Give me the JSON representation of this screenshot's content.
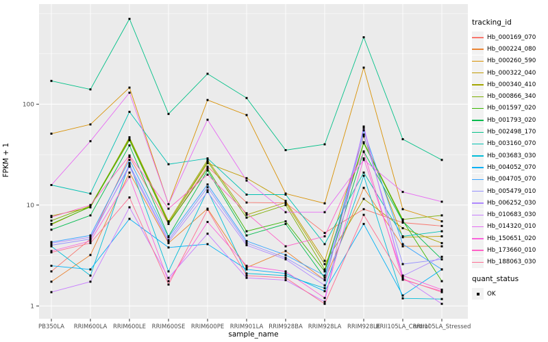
{
  "figure": {
    "background": "#FFFFFF",
    "panel_background": "#EBEBEB",
    "gridline_color": "#FFFFFF",
    "tick_mark_color": "#333333",
    "axis_text_color": "#4D4D4D",
    "point_color": "#000000"
  },
  "axes": {
    "x_label": "sample_name",
    "y_label": "FPKM + 1",
    "y_scale": "log10",
    "y_ticks": [
      1,
      10,
      100
    ],
    "y_minor_values": [
      3.16,
      31.6,
      316,
      790
    ]
  },
  "legend": {
    "color_title": "tracking_id",
    "shape_title": "quant_status",
    "shape_items": [
      {
        "label": "OK",
        "marker": "black-square"
      }
    ]
  },
  "chart_data": {
    "type": "line",
    "title": "",
    "xlabel": "sample_name",
    "ylabel": "FPKM + 1",
    "y_axis": {
      "scale": "log10",
      "ticks": [
        1,
        10,
        100
      ],
      "range_approx": [
        0.75,
        900
      ]
    },
    "grid": true,
    "legend_position": "right",
    "point_marker": {
      "shape": "square",
      "color": "#000000",
      "meaning": "quant_status = OK"
    },
    "x_categories": [
      "PB350LA",
      "RRIM600LA",
      "RRIM600LE",
      "RRIM600SE",
      "RRIM600PE",
      "RRIM901LA",
      "RRIM928BA",
      "RRIM928LA",
      "RRIM928LE",
      "RRII105LA_Control",
      "RRII105LA_Stressed"
    ],
    "series": [
      {
        "name": "Hb_000169_070",
        "color": "#F8766D",
        "values": [
          2.2,
          4.6,
          30,
          6.5,
          24,
          10.6,
          10.5,
          5.3,
          9.1,
          6.7,
          6.2
        ]
      },
      {
        "name": "Hb_000224_080",
        "color": "#EA8331",
        "values": [
          1.74,
          3.2,
          21,
          4.2,
          9.2,
          2.4,
          3.5,
          1.8,
          14.8,
          3.9,
          3.9
        ]
      },
      {
        "name": "Hb_000260_590",
        "color": "#D89000",
        "values": [
          51,
          63,
          146,
          10.2,
          110,
          78,
          13,
          10.4,
          230,
          9.1,
          6.9
        ]
      },
      {
        "name": "Hb_000322_040",
        "color": "#C09B00",
        "values": [
          6.4,
          9.7,
          45,
          6.7,
          26,
          18.5,
          11,
          2.8,
          48,
          4.8,
          4.9
        ]
      },
      {
        "name": "Hb_000340_410",
        "color": "#A3A500",
        "values": [
          7.8,
          9.5,
          47,
          6.9,
          28,
          8.0,
          10.6,
          2.6,
          11.5,
          5.9,
          4.2
        ]
      },
      {
        "name": "Hb_000866_340",
        "color": "#7CAE00",
        "values": [
          7.0,
          9.8,
          46,
          6.6,
          27,
          7.5,
          10,
          2.3,
          42,
          7.2,
          7.9
        ]
      },
      {
        "name": "Hb_001597_020",
        "color": "#39B600",
        "values": [
          6.5,
          9.6,
          44,
          6.5,
          23,
          5.5,
          6.9,
          2.2,
          41,
          7.0,
          1.76
        ]
      },
      {
        "name": "Hb_001793_020",
        "color": "#00BB4E",
        "values": [
          5.7,
          7.9,
          39,
          4.9,
          22,
          5.0,
          6.5,
          1.9,
          34,
          6.9,
          2.9
        ]
      },
      {
        "name": "Hb_002498_170",
        "color": "#00C087",
        "values": [
          170,
          140,
          700,
          80,
          200,
          115,
          35,
          40,
          460,
          45,
          28
        ]
      },
      {
        "name": "Hb_003160_070",
        "color": "#00C0B2",
        "values": [
          15.8,
          13,
          84,
          25.4,
          29,
          12.7,
          12.7,
          4.1,
          21,
          4.9,
          5.5
        ]
      },
      {
        "name": "Hb_003683_030",
        "color": "#00BCD8",
        "values": [
          3.9,
          2.0,
          26,
          2.2,
          14,
          2.1,
          2.0,
          1.5,
          19.5,
          1.19,
          1.17
        ]
      },
      {
        "name": "Hb_004052_070",
        "color": "#00B0F6",
        "values": [
          2.5,
          2.3,
          7.3,
          3.8,
          4.1,
          2.3,
          2.1,
          1.4,
          6.5,
          1.27,
          2.3
        ]
      },
      {
        "name": "Hb_004705_070",
        "color": "#35A2FF",
        "values": [
          4.3,
          5.0,
          28,
          4.8,
          16,
          4.4,
          3.2,
          2.0,
          55,
          4.1,
          2.3
        ]
      },
      {
        "name": "Hb_005479_010",
        "color": "#9590FF",
        "values": [
          4.0,
          4.6,
          25,
          4.5,
          15,
          4.2,
          3.0,
          1.8,
          50,
          2.6,
          2.9
        ]
      },
      {
        "name": "Hb_006252_030",
        "color": "#AE87FF",
        "values": [
          4.2,
          4.8,
          24,
          4.3,
          13.5,
          4.0,
          2.9,
          1.6,
          58,
          1.98,
          3.07
        ]
      },
      {
        "name": "Hb_010683_030",
        "color": "#C77CFF",
        "values": [
          1.37,
          1.74,
          9.5,
          1.9,
          5.2,
          1.9,
          1.8,
          1.1,
          60,
          1.9,
          1.05
        ]
      },
      {
        "name": "Hb_014320_010",
        "color": "#E76BF3",
        "values": [
          15.8,
          43,
          130,
          10.2,
          70,
          17.5,
          8.5,
          8.5,
          28,
          13.5,
          10.8
        ]
      },
      {
        "name": "Hb_150651_020",
        "color": "#FA62DB",
        "values": [
          3.5,
          4.4,
          19,
          1.76,
          6.8,
          2.5,
          2.2,
          1.2,
          29,
          2.0,
          1.45
        ]
      },
      {
        "name": "Hb_173660_010",
        "color": "#FF61C7",
        "values": [
          7.6,
          10,
          31,
          9.2,
          20,
          8.3,
          3.9,
          4.9,
          33.6,
          1.82,
          1.4
        ]
      },
      {
        "name": "Hb_188063_030",
        "color": "#FF6C91",
        "values": [
          3.4,
          4.2,
          11.9,
          1.63,
          9.0,
          2.0,
          1.9,
          1.05,
          8.0,
          1.85,
          1.37
        ]
      }
    ]
  }
}
